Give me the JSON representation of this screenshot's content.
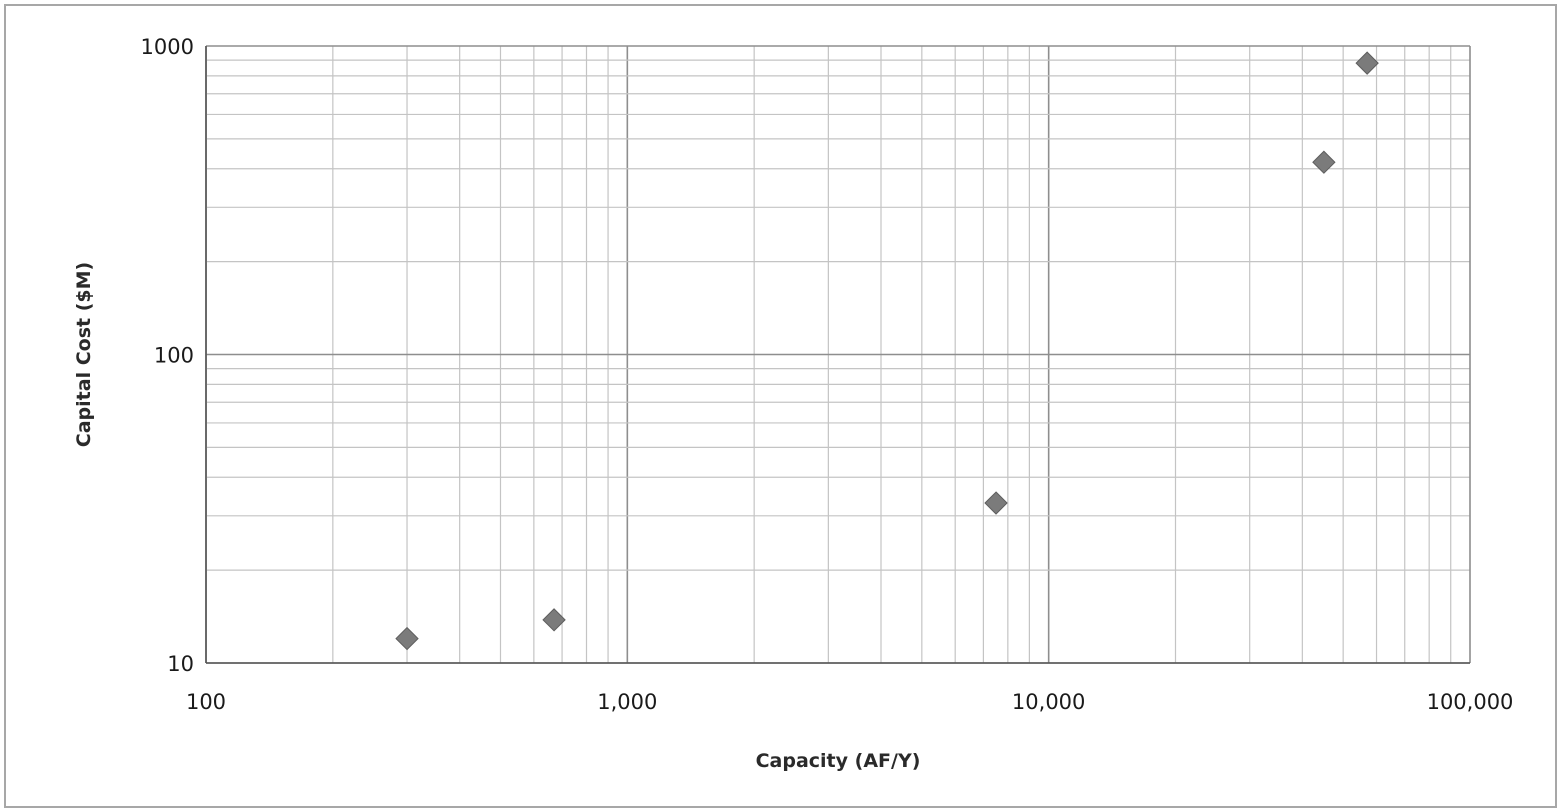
{
  "chart_data": {
    "type": "scatter",
    "title": "",
    "xlabel": "Capacity (AF/Y)",
    "ylabel": "Capital Cost ($M)",
    "x_scale": "log",
    "y_scale": "log",
    "xlim": [
      100,
      100000
    ],
    "ylim": [
      10,
      1000
    ],
    "x_ticks": [
      {
        "value": 100,
        "label": "100"
      },
      {
        "value": 1000,
        "label": "1,000"
      },
      {
        "value": 10000,
        "label": "10,000"
      },
      {
        "value": 100000,
        "label": "100,000"
      }
    ],
    "y_ticks": [
      {
        "value": 10,
        "label": "10"
      },
      {
        "value": 100,
        "label": "100"
      },
      {
        "value": 1000,
        "label": "1000"
      }
    ],
    "grid": true,
    "minor_grid": true,
    "legend": "none",
    "marker": "diamond",
    "marker_color": "#7b7b7b",
    "series": [
      {
        "points": [
          {
            "x": 300,
            "y": 12
          },
          {
            "x": 670,
            "y": 13.8
          },
          {
            "x": 7500,
            "y": 33
          },
          {
            "x": 45000,
            "y": 420
          },
          {
            "x": 57000,
            "y": 880
          }
        ]
      }
    ]
  }
}
